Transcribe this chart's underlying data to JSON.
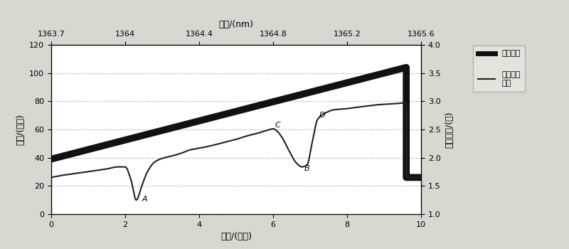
{
  "title_top": "波长/(nm)",
  "xlabel": "时间/(毫秒)",
  "ylabel_left": "电流/(毫安)",
  "ylabel_right": "信号幅値/(伏)",
  "xlim": [
    0,
    10
  ],
  "ylim_left": [
    0,
    120
  ],
  "ylim_right": [
    1,
    4
  ],
  "xticks": [
    0,
    2,
    4,
    6,
    8,
    10
  ],
  "yticks_left": [
    0,
    20,
    40,
    60,
    80,
    100,
    120
  ],
  "yticks_right": [
    1,
    1.5,
    2,
    2.5,
    3,
    3.5,
    4
  ],
  "top_xticks_labels": [
    "1363.7",
    "1364",
    "1364.4",
    "1364.8",
    "1365.2",
    "1365.6"
  ],
  "top_xtick_pos": [
    0,
    2,
    4,
    6,
    8,
    10
  ],
  "legend_labels": [
    "驱动信号",
    "光电转换\n信号"
  ],
  "fig_facecolor": "#d8d8d0",
  "axes_facecolor": "#ffffff",
  "grid_color": "#888888",
  "drive_color": "#111111",
  "photo_color": "#222222",
  "border_color": "#000000"
}
